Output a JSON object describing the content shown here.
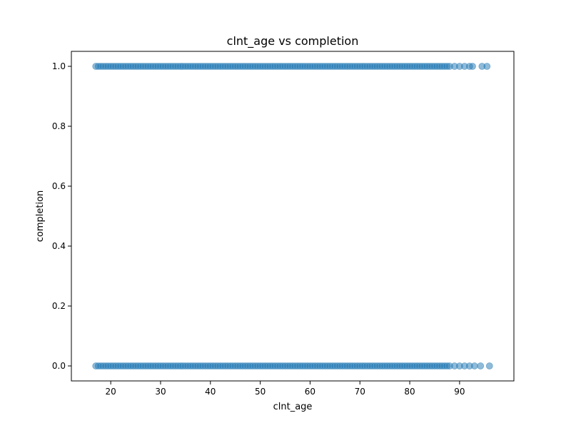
{
  "chart_data": {
    "type": "scatter",
    "title": "clnt_age vs completion",
    "xlabel": "clnt_age",
    "ylabel": "completion",
    "xlim": [
      12.1,
      100.9
    ],
    "ylim": [
      -0.05,
      1.05
    ],
    "xticks": [
      20,
      30,
      40,
      50,
      60,
      70,
      80,
      90
    ],
    "yticks": [
      0.0,
      0.2,
      0.4,
      0.6,
      0.8,
      1.0
    ],
    "xtick_labels": [
      "20",
      "30",
      "40",
      "50",
      "60",
      "70",
      "80",
      "90"
    ],
    "ytick_labels": [
      "0.0",
      "0.2",
      "0.4",
      "0.6",
      "0.8",
      "1.0"
    ],
    "grid": false,
    "marker_color": "#1f77b4",
    "marker_alpha": 0.5,
    "series": [
      {
        "x_dense_range": [
          17,
          75
        ],
        "x_sparse": [
          75.5,
          76,
          76.5,
          77,
          77.5,
          78,
          78.5,
          79,
          79.5,
          80,
          80.5,
          81,
          81.5,
          82,
          82.5,
          83,
          83.5,
          84,
          84.5,
          85,
          85.5,
          86,
          86.5,
          87,
          87.5,
          88,
          89,
          90,
          91,
          92,
          93,
          94.2,
          96
        ],
        "y": 0
      },
      {
        "x_dense_range": [
          17,
          75
        ],
        "x_sparse": [
          75.5,
          76,
          76.5,
          77,
          77.5,
          78,
          78.5,
          79,
          79.5,
          80,
          80.5,
          81,
          81.5,
          82,
          82.5,
          83,
          83.5,
          84,
          84.5,
          85,
          85.5,
          86,
          86.5,
          87,
          87.5,
          88,
          89,
          90,
          91,
          92,
          92.6,
          94.5,
          95.5
        ],
        "y": 1
      }
    ]
  }
}
